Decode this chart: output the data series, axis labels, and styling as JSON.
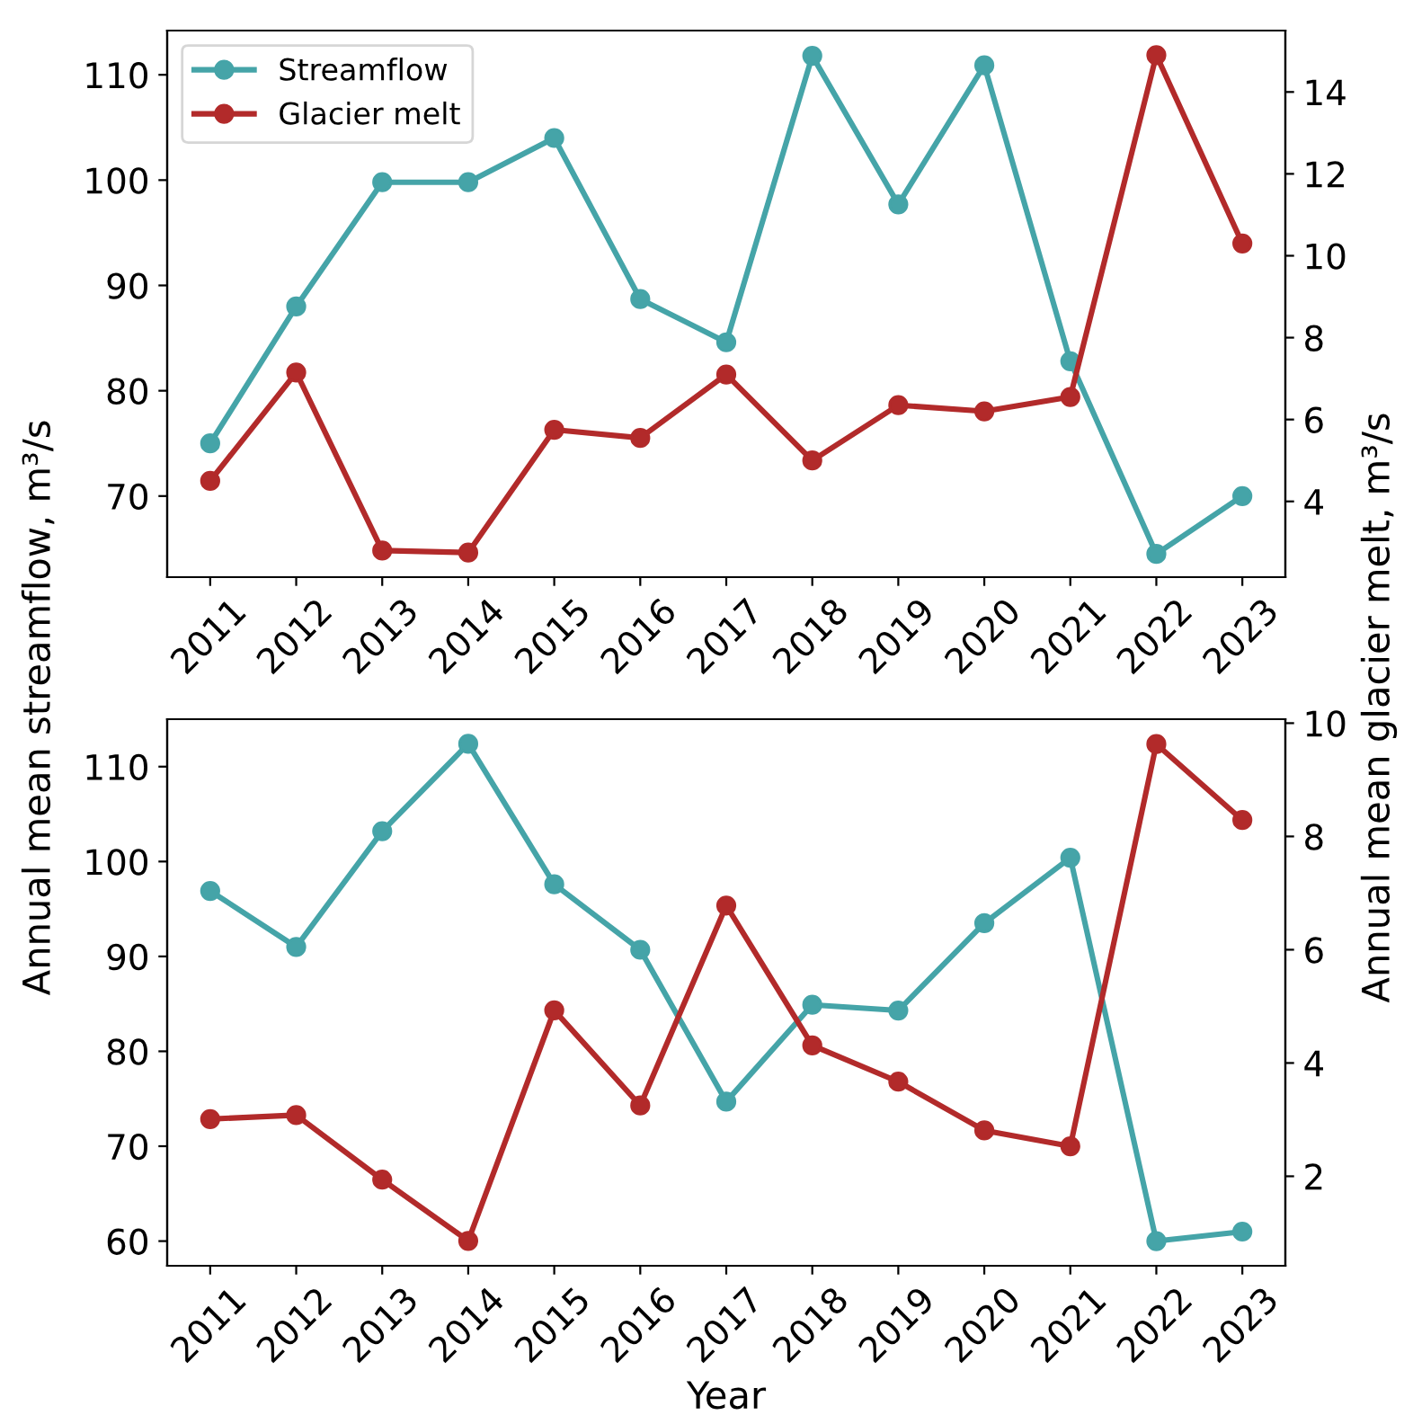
{
  "chart_data": [
    {
      "type": "line",
      "categories": [
        "2011",
        "2012",
        "2013",
        "2014",
        "2015",
        "2016",
        "2017",
        "2018",
        "2019",
        "2020",
        "2021",
        "2022",
        "2023"
      ],
      "ylabel": "Annual mean streamflow, m³/s",
      "y2label": "Annual mean glacier melt, m³/s",
      "ylim": [
        62.3,
        114.2
      ],
      "yticks": [
        70,
        80,
        90,
        100,
        110
      ],
      "y2lim": [
        2.15,
        15.5
      ],
      "y2ticks": [
        4,
        6,
        8,
        10,
        12,
        14
      ],
      "marker": "circle",
      "line_style": "solid",
      "grid": false,
      "legend": "top left",
      "series": [
        {
          "name": "Streamflow",
          "color": "#45a4a8",
          "values": [
            75.0,
            88.0,
            99.8,
            99.8,
            104.0,
            88.7,
            84.6,
            111.8,
            97.7,
            110.9,
            82.8,
            64.5,
            70.0
          ]
        },
        {
          "name": "Glacier melt",
          "color": "#b22a2a",
          "axis": "y2",
          "values": [
            4.5,
            7.15,
            2.8,
            2.75,
            5.75,
            5.55,
            7.1,
            5.0,
            6.35,
            6.2,
            6.55,
            14.9,
            10.3
          ]
        }
      ]
    },
    {
      "type": "line",
      "categories": [
        "2011",
        "2012",
        "2013",
        "2014",
        "2015",
        "2016",
        "2017",
        "2018",
        "2019",
        "2020",
        "2021",
        "2022",
        "2023"
      ],
      "xlabel": "Year",
      "ylim": [
        57.4,
        115.0
      ],
      "yticks": [
        60,
        70,
        80,
        90,
        100,
        110
      ],
      "y2lim": [
        0.42,
        10.07
      ],
      "y2ticks": [
        2,
        4,
        6,
        8,
        10
      ],
      "marker": "circle",
      "line_style": "solid",
      "grid": false,
      "series": [
        {
          "color": "#45a4a8",
          "values": [
            96.9,
            91.0,
            103.2,
            112.4,
            97.6,
            90.7,
            74.7,
            84.9,
            84.3,
            93.5,
            100.4,
            60.0,
            61.0
          ]
        },
        {
          "color": "#b22a2a",
          "axis": "y2",
          "values": [
            3.01,
            3.08,
            1.94,
            0.86,
            4.93,
            3.25,
            6.78,
            4.31,
            3.67,
            2.81,
            2.53,
            9.63,
            8.29
          ]
        }
      ]
    }
  ]
}
